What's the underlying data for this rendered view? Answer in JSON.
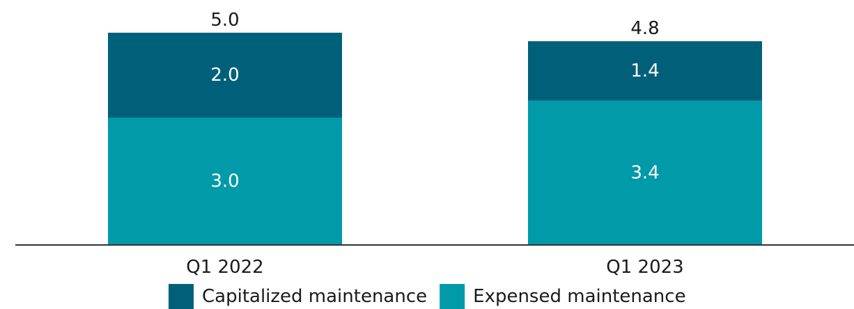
{
  "chart_data": {
    "type": "bar",
    "stacked": true,
    "categories": [
      "Q1 2022",
      "Q1 2023"
    ],
    "series": [
      {
        "name": "Expensed maintenance",
        "values": [
          3.0,
          3.4
        ],
        "labels": [
          "3.0",
          "3.4"
        ],
        "color": "#009aa8"
      },
      {
        "name": "Capitalized maintenance",
        "values": [
          2.0,
          1.4
        ],
        "labels": [
          "2.0",
          "1.4"
        ],
        "color": "#00607a"
      }
    ],
    "totals": [
      5.0,
      4.8
    ],
    "total_labels": [
      "5.0",
      "4.8"
    ],
    "ylim": [
      0,
      5.0
    ],
    "grid": false,
    "legend": {
      "placement": "bottom",
      "order": [
        "Capitalized maintenance",
        "Expensed maintenance"
      ]
    },
    "title": "",
    "xlabel": "",
    "ylabel": ""
  }
}
